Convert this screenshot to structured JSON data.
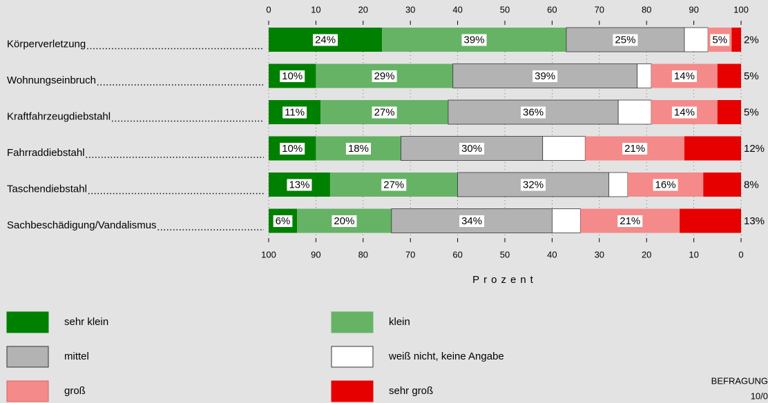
{
  "chart_data": {
    "type": "stacked-bar-horizontal",
    "categories": [
      "Körperverletzung",
      "Wohnungseinbruch",
      "Kraftfahrzeugdiebstahl",
      "Fahrraddiebstahl",
      "Taschendiebstahl",
      "Sachbeschädigung/Vandalismus"
    ],
    "series": [
      {
        "name": "sehr klein",
        "color": "#008000",
        "values": [
          24,
          10,
          11,
          10,
          13,
          6
        ],
        "value_labels": [
          "24%",
          "10%",
          "11%",
          "10%",
          "13%",
          "6%"
        ]
      },
      {
        "name": "klein",
        "color": "#66b366",
        "values": [
          39,
          29,
          27,
          18,
          27,
          20
        ],
        "value_labels": [
          "39%",
          "29%",
          "27%",
          "18%",
          "27%",
          "20%"
        ]
      },
      {
        "name": "mittel",
        "color": "#b3b3b3",
        "values": [
          25,
          39,
          36,
          30,
          32,
          34
        ],
        "value_labels": [
          "25%",
          "39%",
          "36%",
          "30%",
          "32%",
          "34%"
        ]
      },
      {
        "name": "weiß nicht, keine Angabe",
        "color": "#ffffff",
        "values": [
          5,
          3,
          7,
          9,
          4,
          6
        ]
      },
      {
        "name": "groß",
        "color": "#f48a8a",
        "values": [
          5,
          14,
          14,
          21,
          16,
          21
        ],
        "value_labels": [
          "5%",
          "14%",
          "14%",
          "21%",
          "16%",
          "21%"
        ]
      },
      {
        "name": "sehr groß",
        "color": "#e60000",
        "values": [
          2,
          5,
          5,
          12,
          8,
          13
        ],
        "value_labels": [
          "2%",
          "5%",
          "5%",
          "12%",
          "8%",
          "13%"
        ]
      }
    ],
    "xlim": [
      0,
      100
    ],
    "xticks": [
      0,
      10,
      20,
      30,
      40,
      50,
      60,
      70,
      80,
      90,
      100
    ],
    "x2lim": [
      100,
      0
    ],
    "x2ticks": [
      100,
      90,
      80,
      70,
      60,
      50,
      40,
      30,
      20,
      10,
      0
    ],
    "xlabel": "Prozent",
    "grid": true,
    "footnote": "BEFRAGUNG",
    "footnote2": "10/0"
  }
}
